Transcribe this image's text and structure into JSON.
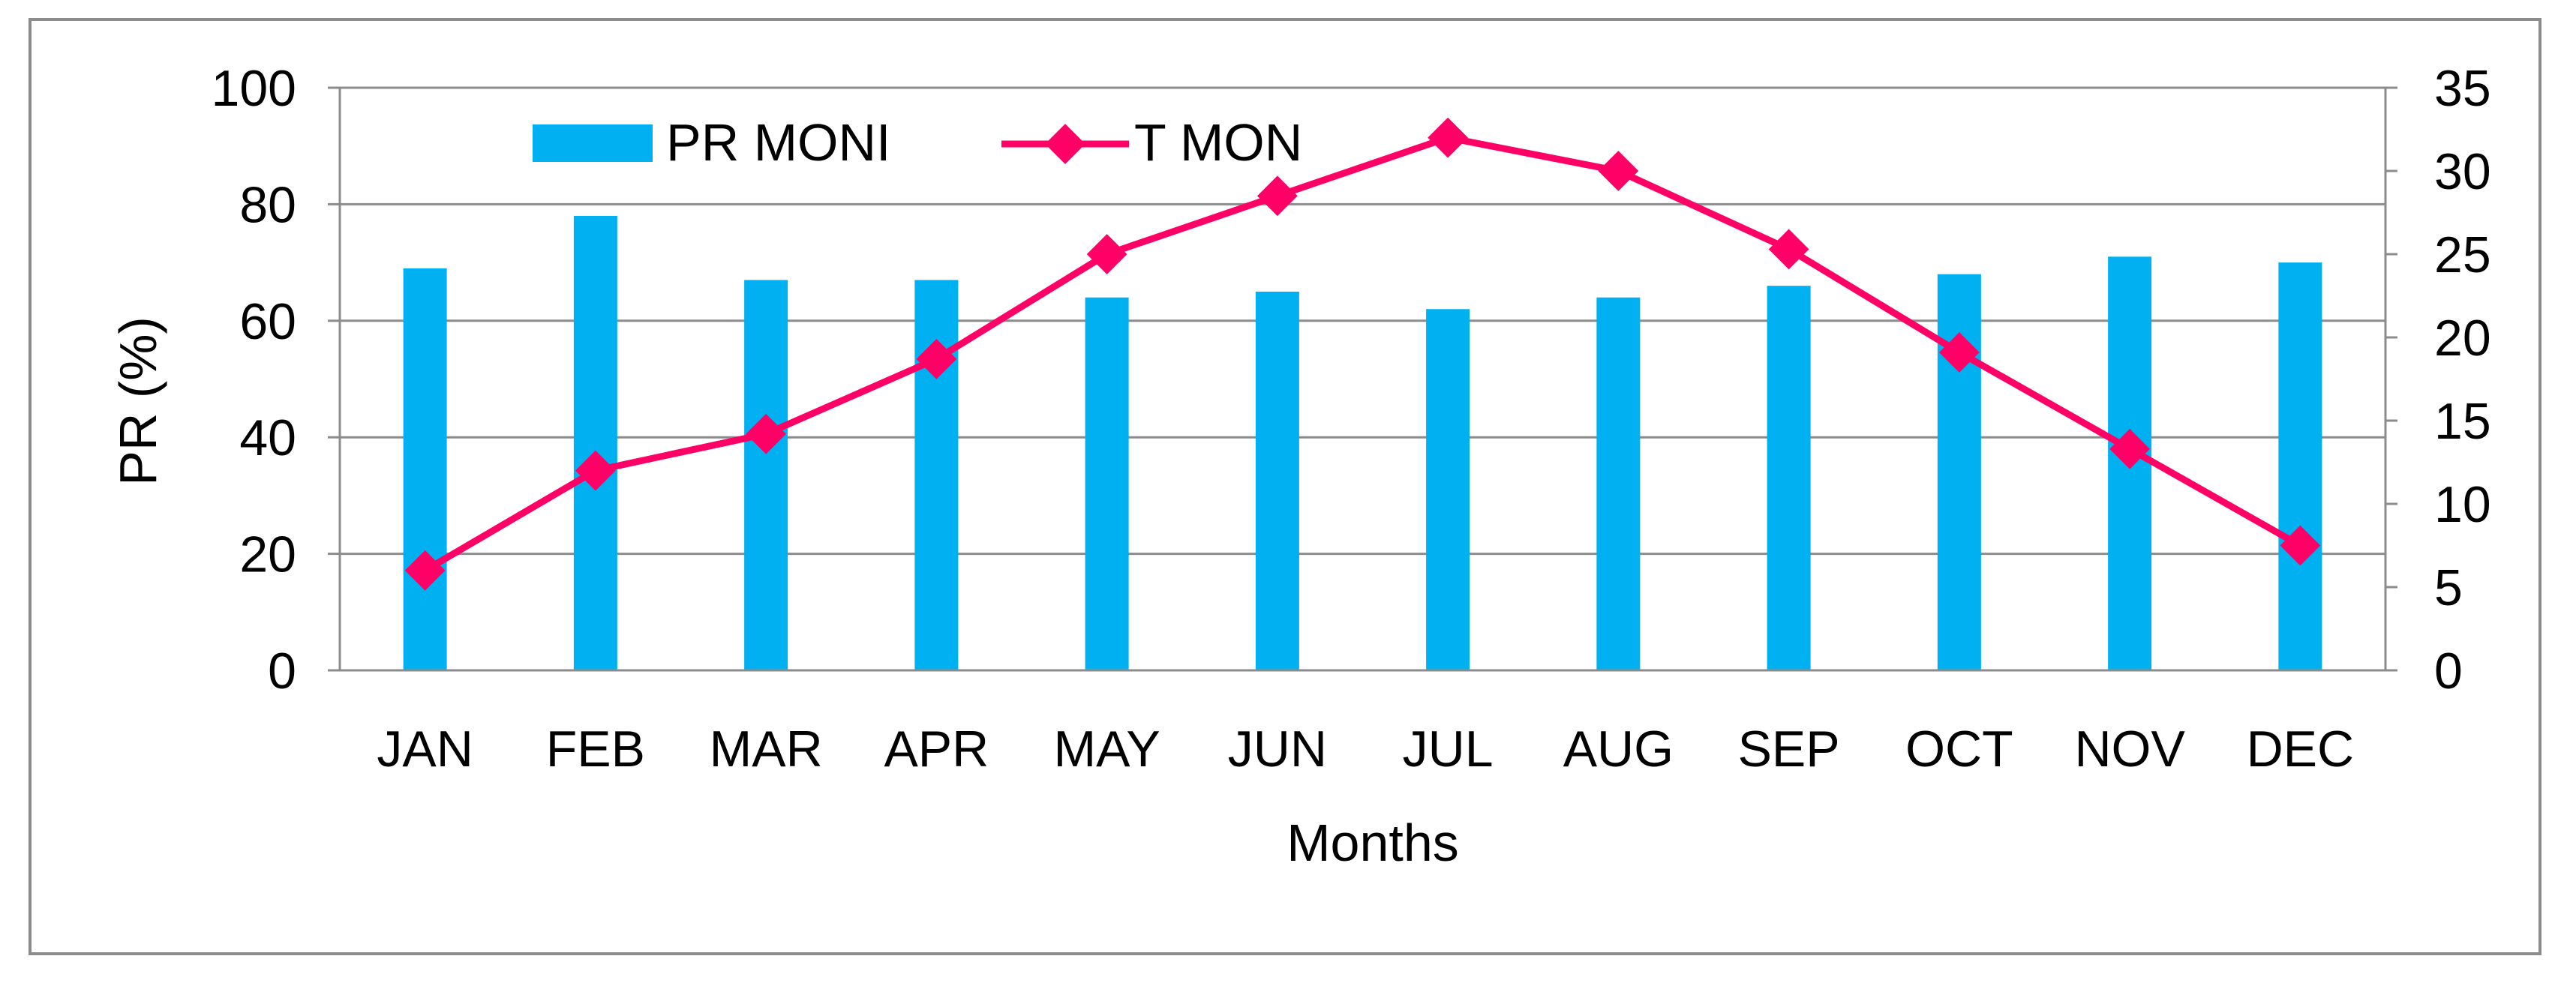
{
  "chart_data": {
    "type": "bar",
    "categories": [
      "JAN",
      "FEB",
      "MAR",
      "APR",
      "MAY",
      "JUN",
      "JUL",
      "AUG",
      "SEP",
      "OCT",
      "NOV",
      "DEC"
    ],
    "series": [
      {
        "name": "PR MONI",
        "type": "bar",
        "axis": "left",
        "color": "#00B0F0",
        "values": [
          69,
          78,
          67,
          67,
          64,
          65,
          62,
          64,
          66,
          68,
          71,
          70
        ]
      },
      {
        "name": "T MON",
        "type": "line",
        "axis": "right",
        "color": "#FF0066",
        "marker": "diamond",
        "values": [
          6,
          12,
          14.2,
          18.7,
          25,
          28.5,
          32,
          30,
          25.3,
          19.1,
          13.3,
          7.5
        ]
      }
    ],
    "xlabel": "Months",
    "ylabel": "PR (%)",
    "ylim": [
      0,
      100
    ],
    "yticks": [
      "0",
      "20",
      "40",
      "60",
      "80",
      "100"
    ],
    "y2lim": [
      0,
      35
    ],
    "y2ticks": [
      "0",
      "5",
      "10",
      "15",
      "20",
      "25",
      "30",
      "35"
    ],
    "grid": true,
    "legend_position": "top-left"
  }
}
